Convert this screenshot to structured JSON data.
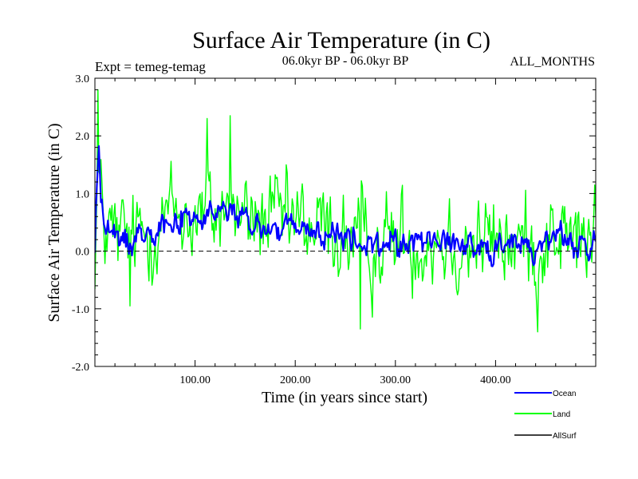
{
  "chart_data": {
    "type": "line",
    "title": "Surface Air Temperature (in C)",
    "subtitle_left": "Expt = temeg-temag",
    "subtitle_center": "06.0kyr BP - 06.0kyr BP",
    "subtitle_right": "ALL_MONTHS",
    "xlabel": "Time (in years since start)",
    "ylabel": "Surface Air Temperature (in C)",
    "xlim": [
      0,
      500
    ],
    "ylim": [
      -2.0,
      3.0
    ],
    "x_ticks": [
      100,
      200,
      300,
      400
    ],
    "x_tick_labels": [
      "100.00",
      "200.00",
      "300.00",
      "400.00"
    ],
    "y_ticks": [
      -2,
      -1,
      0,
      1,
      2,
      3
    ],
    "y_tick_labels": [
      "-2.0",
      "-1.0",
      "0.0",
      "1.0",
      "2.0",
      "3.0"
    ],
    "zero_line": true,
    "series": [
      {
        "name": "Land",
        "color": "#00ff00",
        "x_step": 1,
        "anchor_x": [
          0,
          2,
          4,
          6,
          10,
          20,
          30,
          40,
          60,
          80,
          100,
          120,
          135,
          150,
          170,
          200,
          230,
          260,
          270,
          300,
          340,
          380,
          420,
          440,
          460,
          480,
          500
        ],
        "anchor_mean": [
          0.0,
          1.0,
          1.2,
          0.8,
          0.4,
          0.2,
          0.2,
          0.2,
          0.5,
          0.65,
          0.6,
          0.65,
          0.8,
          0.55,
          0.5,
          0.45,
          0.35,
          0.2,
          0.1,
          0.2,
          0.25,
          0.15,
          0.15,
          0.05,
          0.35,
          0.15,
          0.2
        ],
        "noise": 0.55,
        "extremes": [
          {
            "x": 3,
            "value": 2.8
          },
          {
            "x": 135,
            "value": 2.35
          },
          {
            "x": 112,
            "value": 2.3
          },
          {
            "x": 265,
            "value": -1.35
          },
          {
            "x": 442,
            "value": -1.4
          },
          {
            "x": 35,
            "value": -0.95
          }
        ]
      },
      {
        "name": "Ocean",
        "color": "#0000ff",
        "x_step": 1,
        "anchor_x": [
          0,
          2,
          4,
          6,
          10,
          20,
          30,
          40,
          60,
          80,
          100,
          120,
          135,
          150,
          170,
          200,
          230,
          260,
          270,
          300,
          340,
          380,
          420,
          440,
          460,
          480,
          500
        ],
        "anchor_mean": [
          0.0,
          1.2,
          1.8,
          1.0,
          0.4,
          0.2,
          0.15,
          0.25,
          0.5,
          0.55,
          0.55,
          0.6,
          0.75,
          0.45,
          0.4,
          0.35,
          0.3,
          0.15,
          0.05,
          0.15,
          0.2,
          0.1,
          0.1,
          0.0,
          0.35,
          0.05,
          0.15
        ],
        "noise": 0.17
      },
      {
        "name": "AllSurf",
        "color": "#000000",
        "values": []
      }
    ]
  }
}
